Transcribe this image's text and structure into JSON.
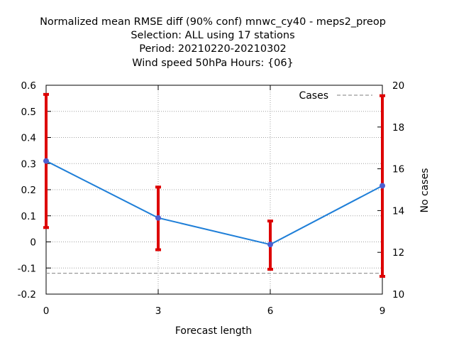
{
  "chart_data": {
    "type": "line",
    "title_lines": [
      "Normalized mean RMSE diff (90% conf) mnwc_cy40 - meps2_preop",
      "Selection: ALL using    17 stations",
      "Period: 20210220-20210302",
      "Wind speed 50hPa   Hours: {06}"
    ],
    "xlabel": "Forecast length",
    "ylabel": "",
    "y2label": "No cases",
    "x": [
      0,
      3,
      6,
      9
    ],
    "xlim": [
      0,
      9
    ],
    "ylim": [
      -0.2,
      0.6
    ],
    "y2lim": [
      10,
      20
    ],
    "x_ticks": [
      "0",
      "3",
      "6",
      "9"
    ],
    "y_ticks": [
      "0.6",
      "0.5",
      "0.4",
      "0.3",
      "0.2",
      "0.1",
      "0",
      "-0.1",
      "-0.2"
    ],
    "y_tick_values": [
      0.6,
      0.5,
      0.4,
      0.3,
      0.2,
      0.1,
      0,
      -0.1,
      -0.2
    ],
    "y2_ticks": [
      "20",
      "18",
      "16",
      "14",
      "12",
      "10"
    ],
    "y2_tick_values": [
      20,
      18,
      16,
      14,
      12,
      10
    ],
    "grid": true,
    "legend_position": "top-right",
    "series": [
      {
        "values": [
          0.31,
          0.092,
          -0.01,
          0.215
        ],
        "ci_low": [
          0.055,
          -0.03,
          -0.105,
          -0.132
        ],
        "ci_high": [
          0.565,
          0.21,
          0.08,
          0.56
        ],
        "color": "#1f7fd8",
        "marker_color": "#4d5fd0",
        "errorbar_color": "#dd0000"
      },
      {
        "name": "Cases",
        "axis": "y2",
        "values": [
          11,
          11,
          11,
          11
        ],
        "color": "#999999",
        "dash": true
      }
    ]
  }
}
